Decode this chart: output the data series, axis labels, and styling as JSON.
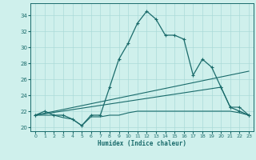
{
  "xlabel": "Humidex (Indice chaleur)",
  "bg_color": "#cff0ec",
  "line_color": "#1a6b6b",
  "grid_color": "#aadbd8",
  "xlim": [
    -0.5,
    23.5
  ],
  "ylim": [
    19.5,
    35.5
  ],
  "xticks": [
    0,
    1,
    2,
    3,
    4,
    5,
    6,
    7,
    8,
    9,
    10,
    11,
    12,
    13,
    14,
    15,
    16,
    17,
    18,
    19,
    20,
    21,
    22,
    23
  ],
  "yticks": [
    20,
    22,
    24,
    26,
    28,
    30,
    32,
    34
  ],
  "curve_main": {
    "x": [
      0,
      1,
      2,
      3,
      4,
      5,
      6,
      7,
      8,
      9,
      10,
      11,
      12,
      13,
      14,
      15,
      16,
      17,
      18,
      19,
      20,
      21,
      22,
      23
    ],
    "y": [
      21.5,
      22.0,
      21.5,
      21.5,
      21.0,
      20.2,
      21.5,
      21.5,
      25.0,
      28.5,
      30.5,
      33.0,
      34.5,
      33.5,
      31.5,
      31.5,
      31.0,
      26.5,
      28.5,
      27.5,
      25.0,
      22.5,
      22.0,
      21.5
    ]
  },
  "curve_trend1": {
    "x": [
      0,
      23
    ],
    "y": [
      21.5,
      27.0
    ]
  },
  "curve_trend2": {
    "x": [
      0,
      20,
      21,
      22,
      23
    ],
    "y": [
      21.5,
      25.0,
      22.5,
      22.5,
      21.5
    ]
  },
  "curve_low": {
    "x": [
      0,
      1,
      2,
      3,
      4,
      5,
      6,
      7,
      8,
      9,
      10,
      11,
      12,
      13,
      14,
      15,
      16,
      17,
      18,
      19,
      20,
      21,
      22,
      23
    ],
    "y": [
      21.5,
      21.5,
      21.5,
      21.2,
      21.0,
      20.2,
      21.3,
      21.3,
      21.5,
      21.5,
      21.8,
      22.0,
      22.0,
      22.0,
      22.0,
      22.0,
      22.0,
      22.0,
      22.0,
      22.0,
      22.0,
      22.0,
      21.8,
      21.5
    ]
  }
}
